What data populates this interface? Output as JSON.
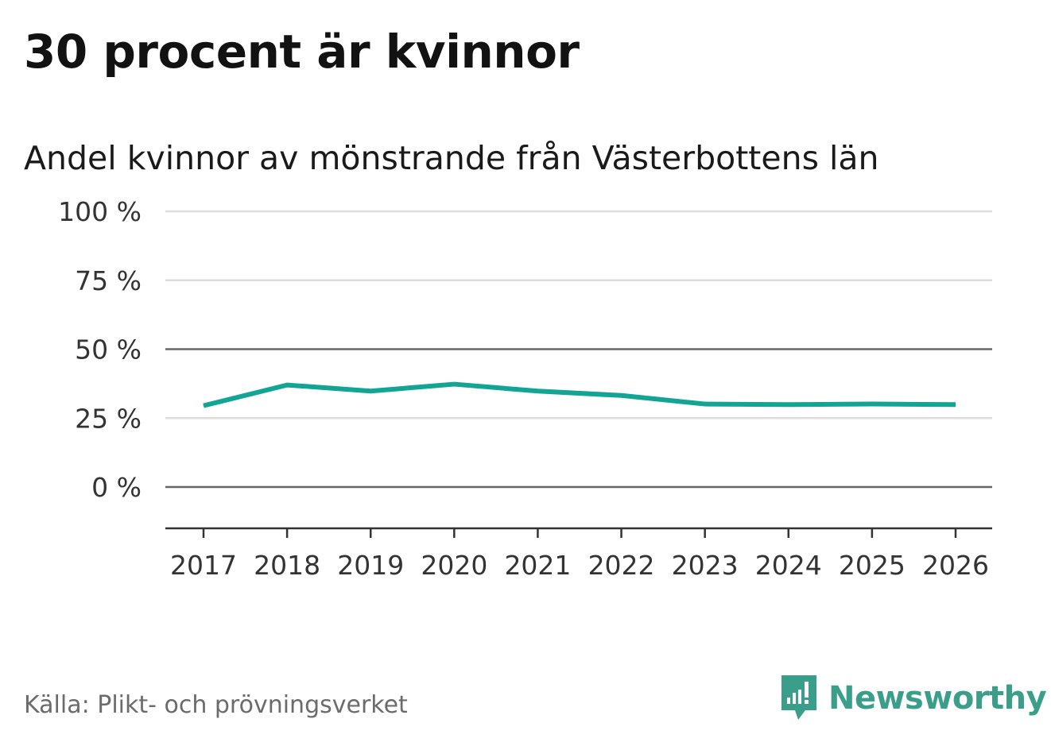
{
  "header": {
    "title": "30 procent är kvinnor",
    "subtitle": "Andel kvinnor av mönstrande från Västerbottens län"
  },
  "chart_data": {
    "type": "line",
    "title": "30 procent är kvinnor",
    "subtitle": "Andel kvinnor av mönstrande från Västerbottens län",
    "xlabel": "",
    "ylabel": "",
    "categories": [
      "2017",
      "2018",
      "2019",
      "2020",
      "2021",
      "2022",
      "2023",
      "2024",
      "2025",
      "2026"
    ],
    "series": [
      {
        "name": "Andel kvinnor",
        "values": [
          29.5,
          37,
          34.8,
          37.3,
          34.8,
          33.2,
          30.1,
          29.9,
          30.1,
          29.9
        ]
      }
    ],
    "ylim": [
      -15,
      100
    ],
    "yticks": [
      0,
      25,
      50,
      75,
      100
    ],
    "ytick_labels": [
      "0 %",
      "25 %",
      "50 %",
      "75 %",
      "100 %"
    ],
    "emphasized_gridlines": [
      0,
      50
    ],
    "grid": true,
    "line_color": "#12a596"
  },
  "footer": {
    "source": "Källa: Plikt- och prövningsverket",
    "brand_name": "Newsworthy",
    "brand_icon": "newsworthy-logo-icon",
    "brand_color": "#3b9e8a"
  }
}
